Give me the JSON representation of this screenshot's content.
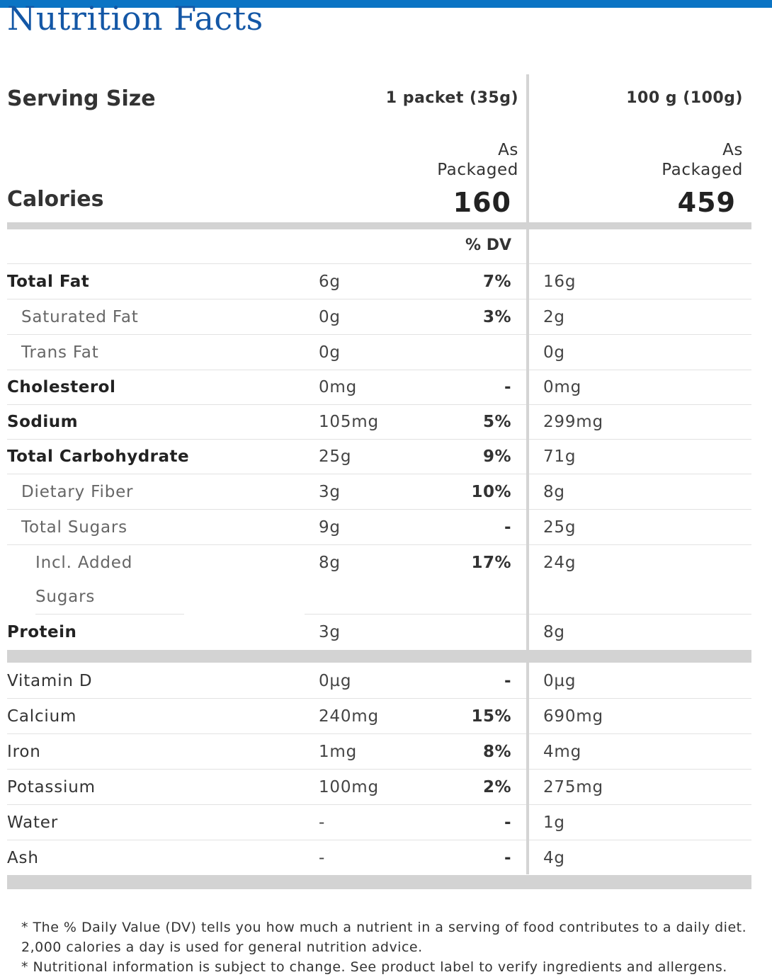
{
  "title": "Nutrition Facts",
  "serving": {
    "label": "Serving Size",
    "col1": "1 packet (35g)",
    "col2": "100 g (100g)",
    "as_label_1": "As",
    "as_label_2": "Packaged"
  },
  "calories": {
    "label": "Calories",
    "col1": "160",
    "col2": "459"
  },
  "dv_header": "% DV",
  "nutrients": [
    {
      "name": "Total Fat",
      "amount": "6g",
      "dv": "7%",
      "amount100": "16g"
    },
    {
      "name": "Saturated Fat",
      "amount": "0g",
      "dv": "3%",
      "amount100": "2g"
    },
    {
      "name": "Trans Fat",
      "amount": "0g",
      "dv": "",
      "amount100": "0g"
    },
    {
      "name": "Cholesterol",
      "amount": "0mg",
      "dv": "-",
      "amount100": "0mg"
    },
    {
      "name": "Sodium",
      "amount": "105mg",
      "dv": "5%",
      "amount100": "299mg"
    },
    {
      "name": "Total Carbohydrate",
      "amount": "25g",
      "dv": "9%",
      "amount100": "71g"
    },
    {
      "name": "Dietary Fiber",
      "amount": "3g",
      "dv": "10%",
      "amount100": "8g"
    },
    {
      "name": "Total Sugars",
      "amount": "9g",
      "dv": "-",
      "amount100": "25g"
    },
    {
      "name_line1": "Incl. Added",
      "name_line2": "Sugars",
      "amount": "8g",
      "dv": "17%",
      "amount100": "24g"
    },
    {
      "name": "Protein",
      "amount": "3g",
      "dv": "",
      "amount100": "8g"
    }
  ],
  "vitamins": [
    {
      "name": "Vitamin D",
      "amount": "0µg",
      "dv": "-",
      "amount100": "0µg"
    },
    {
      "name": "Calcium",
      "amount": "240mg",
      "dv": "15%",
      "amount100": "690mg"
    },
    {
      "name": "Iron",
      "amount": "1mg",
      "dv": "8%",
      "amount100": "4mg"
    },
    {
      "name": "Potassium",
      "amount": "100mg",
      "dv": "2%",
      "amount100": "275mg"
    },
    {
      "name": "Water",
      "amount": "-",
      "dv": "-",
      "amount100": "1g"
    },
    {
      "name": "Ash",
      "amount": "-",
      "dv": "-",
      "amount100": "4g"
    }
  ],
  "footnotes": {
    "line1": "* The % Daily Value (DV) tells you how much a nutrient in a serving of food contributes to a daily diet.",
    "line2": "2,000 calories a day is used for general nutrition advice.",
    "line3": "* Nutritional information is subject to change. See product label to verify ingredients and allergens."
  }
}
